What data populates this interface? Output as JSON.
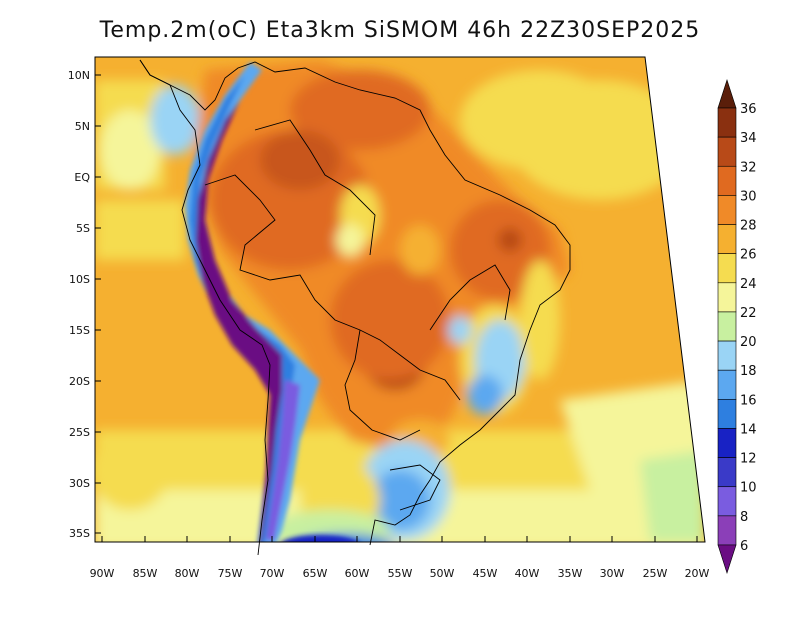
{
  "title": "Temp.2m(oC) Eta3km SiSMOM 46h 22Z30SEP2025",
  "map": {
    "lat_labels": [
      "10N",
      "5N",
      "EQ",
      "5S",
      "10S",
      "15S",
      "20S",
      "25S",
      "30S",
      "35S"
    ],
    "lon_labels": [
      "90W",
      "85W",
      "80W",
      "75W",
      "70W",
      "65W",
      "60W",
      "55W",
      "50W",
      "45W",
      "40W",
      "35W",
      "30W",
      "25W",
      "20W"
    ],
    "lat_range": [
      -38,
      11
    ],
    "lon_range": [
      -91,
      -20
    ]
  },
  "colorbar": {
    "labels": [
      "6",
      "8",
      "10",
      "12",
      "14",
      "16",
      "18",
      "20",
      "22",
      "24",
      "26",
      "28",
      "30",
      "32",
      "34",
      "36"
    ],
    "colors": [
      "#6a0d83",
      "#8b3fb8",
      "#7a5ce0",
      "#3a3ac8",
      "#1822c4",
      "#2e7fe0",
      "#5ca8f0",
      "#9ad4f5",
      "#c8f0a0",
      "#f5f59a",
      "#f5dc50",
      "#f5b030",
      "#f08a28",
      "#e06a20",
      "#b84a18",
      "#8a3010",
      "#5a1e0a"
    ]
  }
}
